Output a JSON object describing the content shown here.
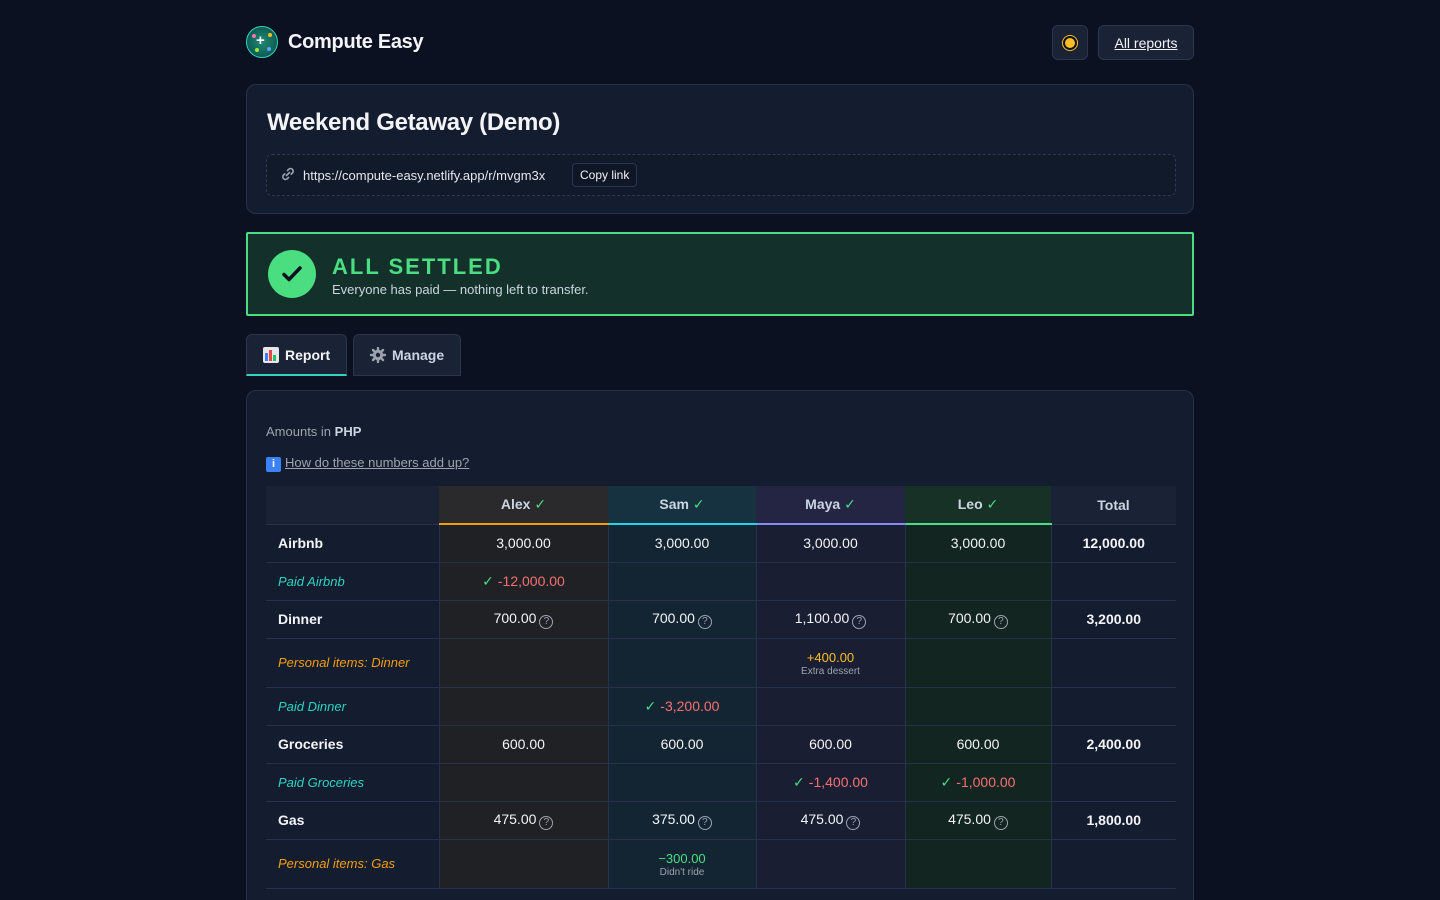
{
  "header": {
    "brand": "Compute Easy",
    "theme_icon": "sun-icon",
    "all_reports": "All reports"
  },
  "report": {
    "title": "Weekend Getaway (Demo)",
    "url": "https://compute-easy.netlify.app/r/mvgm3x",
    "copy_label": "Copy link"
  },
  "settled": {
    "title": "ALL SETTLED",
    "subtitle": "Everyone has paid — nothing left to transfer."
  },
  "tabs": {
    "report": "Report",
    "manage": "Manage"
  },
  "table_info": {
    "amounts_prefix": "Amounts in",
    "currency": "PHP",
    "howto": "How do these numbers add up?"
  },
  "columns": {
    "alex": "Alex",
    "sam": "Sam",
    "maya": "Maya",
    "leo": "Leo",
    "total": "Total"
  },
  "rows": {
    "airbnb": {
      "label": "Airbnb",
      "alex": "3,000.00",
      "sam": "3,000.00",
      "maya": "3,000.00",
      "leo": "3,000.00",
      "total": "12,000.00"
    },
    "paid_airbnb": {
      "label": "Paid Airbnb",
      "alex": "-12,000.00"
    },
    "dinner": {
      "label": "Dinner",
      "alex": "700.00",
      "sam": "700.00",
      "maya": "1,100.00",
      "leo": "700.00",
      "total": "3,200.00"
    },
    "personal_dinner": {
      "label": "Personal items: Dinner",
      "maya": "+400.00",
      "maya_note": "Extra dessert"
    },
    "paid_dinner": {
      "label": "Paid Dinner",
      "sam": "-3,200.00"
    },
    "groceries": {
      "label": "Groceries",
      "alex": "600.00",
      "sam": "600.00",
      "maya": "600.00",
      "leo": "600.00",
      "total": "2,400.00"
    },
    "paid_groceries": {
      "label": "Paid Groceries",
      "maya": "-1,400.00",
      "leo": "-1,000.00"
    },
    "gas": {
      "label": "Gas",
      "alex": "475.00",
      "sam": "375.00",
      "maya": "475.00",
      "leo": "475.00",
      "total": "1,800.00"
    },
    "personal_gas": {
      "label": "Personal items: Gas",
      "sam": "−300.00",
      "sam_note": "Didn't ride"
    }
  },
  "colors": {
    "accent": "#2dd4bf",
    "success": "#4ade80",
    "alex": "#f59e0b",
    "sam": "#22d3ee",
    "maya": "#818cf8",
    "leo": "#4ade80"
  }
}
